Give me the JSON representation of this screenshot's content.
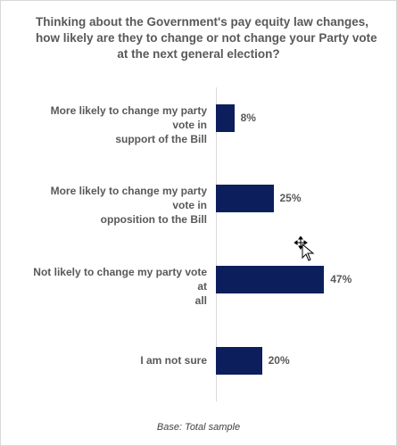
{
  "title_lines": [
    "Thinking about the Government's pay equity law changes,",
    "how likely are they to change or not change your Party vote",
    "at the next general election?"
  ],
  "chart_data": {
    "type": "bar",
    "orientation": "horizontal",
    "title": "Thinking about the Government's pay equity law changes, how likely are they to change or not change your Party vote at the next general election?",
    "categories": [
      [
        "More likely to change my party vote in",
        "support of the Bill"
      ],
      [
        "More likely to change my party vote in",
        "opposition to the Bill"
      ],
      [
        "Not likely to change my party vote at",
        "all"
      ],
      [
        "I am not sure"
      ]
    ],
    "values": [
      8,
      25,
      47,
      20
    ],
    "value_labels": [
      "8%",
      "25%",
      "47%",
      "20%"
    ],
    "unit": "%",
    "xlim": [
      0,
      60
    ],
    "bar_color": "#0c1f5c",
    "grid": false,
    "legend": "none"
  },
  "footnote": "Base: Total sample"
}
